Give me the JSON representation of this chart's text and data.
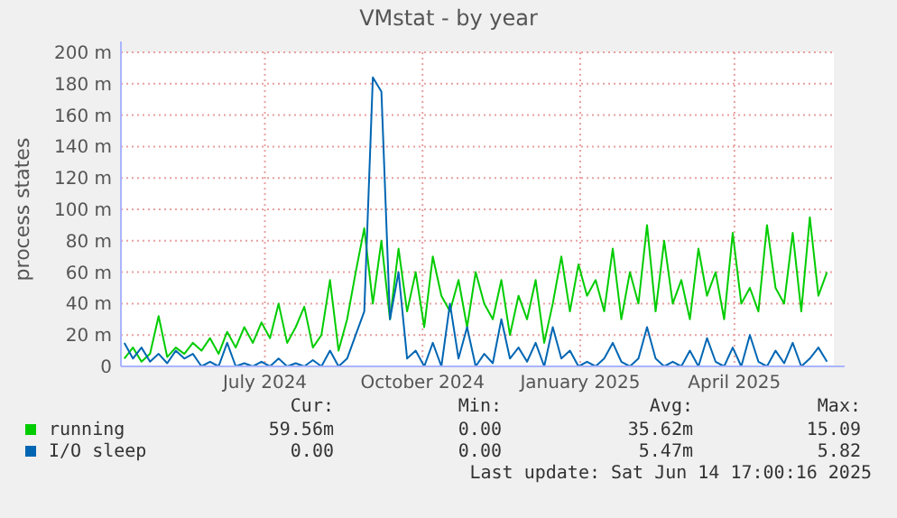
{
  "chart_data": {
    "type": "line",
    "title": "VMstat - by year",
    "ylabel": "process states",
    "x": [
      "2024-04-10",
      "2024-04-15",
      "2024-04-20",
      "2024-04-25",
      "2024-04-30",
      "2024-05-05",
      "2024-05-10",
      "2024-05-15",
      "2024-05-20",
      "2024-05-25",
      "2024-05-30",
      "2024-06-04",
      "2024-06-09",
      "2024-06-14",
      "2024-06-19",
      "2024-06-24",
      "2024-06-29",
      "2024-07-04",
      "2024-07-09",
      "2024-07-14",
      "2024-07-19",
      "2024-07-24",
      "2024-07-29",
      "2024-08-03",
      "2024-08-08",
      "2024-08-13",
      "2024-08-18",
      "2024-08-23",
      "2024-08-28",
      "2024-09-02",
      "2024-09-07",
      "2024-09-12",
      "2024-09-17",
      "2024-09-22",
      "2024-09-27",
      "2024-10-02",
      "2024-10-07",
      "2024-10-12",
      "2024-10-17",
      "2024-10-22",
      "2024-10-27",
      "2024-11-01",
      "2024-11-06",
      "2024-11-11",
      "2024-11-16",
      "2024-11-21",
      "2024-11-26",
      "2024-12-01",
      "2024-12-06",
      "2024-12-11",
      "2024-12-16",
      "2024-12-21",
      "2024-12-26",
      "2024-12-31",
      "2025-01-05",
      "2025-01-10",
      "2025-01-15",
      "2025-01-20",
      "2025-01-25",
      "2025-01-30",
      "2025-02-04",
      "2025-02-09",
      "2025-02-14",
      "2025-02-19",
      "2025-02-24",
      "2025-03-01",
      "2025-03-06",
      "2025-03-11",
      "2025-03-16",
      "2025-03-21",
      "2025-03-26",
      "2025-03-31",
      "2025-04-05",
      "2025-04-10",
      "2025-04-15",
      "2025-04-20",
      "2025-04-25",
      "2025-04-30",
      "2025-05-05",
      "2025-05-10",
      "2025-05-15",
      "2025-05-20",
      "2025-05-25"
    ],
    "series": [
      {
        "name": "running",
        "color": "#00cc00",
        "values": [
          5,
          12,
          3,
          8,
          32,
          6,
          12,
          8,
          15,
          10,
          18,
          8,
          22,
          12,
          25,
          15,
          28,
          18,
          40,
          15,
          25,
          38,
          12,
          20,
          55,
          10,
          30,
          60,
          88,
          40,
          80,
          30,
          75,
          35,
          60,
          25,
          70,
          45,
          35,
          55,
          25,
          60,
          40,
          30,
          55,
          20,
          45,
          30,
          55,
          15,
          40,
          70,
          35,
          65,
          45,
          55,
          35,
          75,
          30,
          60,
          40,
          90,
          35,
          80,
          40,
          55,
          30,
          75,
          45,
          60,
          30,
          85,
          40,
          50,
          35,
          90,
          50,
          40,
          85,
          35,
          95,
          45,
          60
        ]
      },
      {
        "name": "I/O sleep",
        "color": "#0066b3",
        "values": [
          15,
          5,
          12,
          3,
          8,
          2,
          10,
          5,
          8,
          0,
          3,
          0,
          15,
          0,
          2,
          0,
          3,
          0,
          5,
          0,
          2,
          0,
          4,
          0,
          10,
          0,
          5,
          20,
          35,
          184,
          175,
          30,
          60,
          5,
          10,
          0,
          15,
          0,
          40,
          5,
          25,
          0,
          8,
          2,
          30,
          5,
          12,
          3,
          15,
          0,
          25,
          5,
          10,
          0,
          3,
          0,
          5,
          15,
          3,
          0,
          5,
          25,
          5,
          0,
          3,
          0,
          10,
          0,
          18,
          3,
          0,
          12,
          0,
          20,
          3,
          0,
          10,
          2,
          15,
          0,
          5,
          12,
          3
        ]
      }
    ],
    "xlim": [
      "2024-04-08",
      "2025-05-29"
    ],
    "xticks": [
      {
        "value": "2024-07-01",
        "label": "July 2024"
      },
      {
        "value": "2024-10-01",
        "label": "October 2024"
      },
      {
        "value": "2025-01-01",
        "label": "January 2025"
      },
      {
        "value": "2025-04-01",
        "label": "April 2025"
      }
    ],
    "ylim": [
      0,
      200
    ],
    "yticks": [
      0,
      {
        "value": 20,
        "label": "20 m"
      },
      {
        "value": 40,
        "label": "40 m"
      },
      {
        "value": 60,
        "label": "60 m"
      },
      {
        "value": 80,
        "label": "80 m"
      },
      {
        "value": 100,
        "label": "100 m"
      },
      {
        "value": 120,
        "label": "120 m"
      },
      {
        "value": 140,
        "label": "140 m"
      },
      {
        "value": 160,
        "label": "160 m"
      },
      {
        "value": 180,
        "label": "180 m"
      },
      {
        "value": 200,
        "label": "200 m"
      }
    ],
    "grid": true,
    "legend": "bottom",
    "marker": "none",
    "line_style": "solid",
    "annotations": [
      "Cur:",
      "Min:",
      "Avg:",
      "Max:",
      "59.56m",
      "0.00",
      "35.62m",
      "15.09",
      "0.00",
      "0.00",
      "5.47m",
      "5.82",
      "Last update: Sat Jun 14 17:00:16 2025"
    ]
  }
}
